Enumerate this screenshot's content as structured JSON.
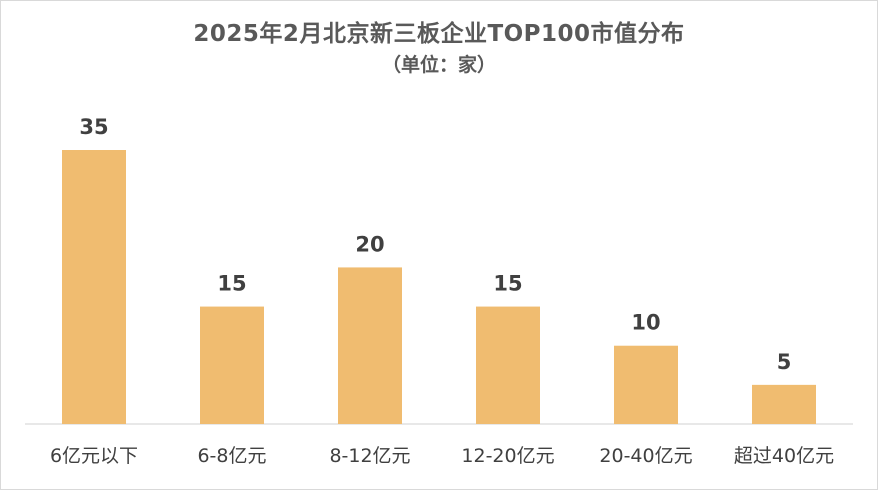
{
  "chart_data": {
    "type": "bar",
    "title": "2025年2月北京新三板企业TOP100市值分布",
    "subtitle": "（单位：家）",
    "categories": [
      "6亿元以下",
      "6-8亿元",
      "8-12亿元",
      "12-20亿元",
      "20-40亿元",
      "超过40亿元"
    ],
    "values": [
      35,
      15,
      20,
      15,
      10,
      5
    ],
    "xlabel": "",
    "ylabel": "",
    "ylim": [
      0,
      35
    ],
    "grid": false,
    "legend": "none",
    "bar_color": "#F0BC70",
    "axis_color": "#d9d9d9"
  }
}
